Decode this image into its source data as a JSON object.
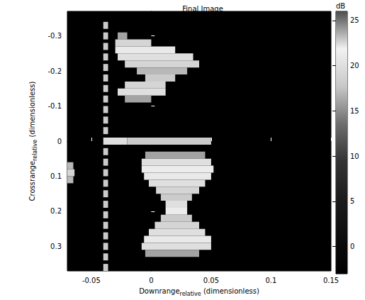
{
  "chart_data": {
    "type": "heatmap",
    "title": "Final Image",
    "x_label": {
      "text": "Downrange",
      "subscript": "relative",
      "suffix": "(dimensionless)"
    },
    "y_label": {
      "text": "Crossrange",
      "subscript": "relative",
      "suffix": "(dimensionless)"
    },
    "xlim": [
      -0.07,
      0.15
    ],
    "xticks": [
      -0.05,
      0,
      0.05,
      0.1,
      0.15
    ],
    "ylim": [
      0.37,
      -0.37
    ],
    "yticks": [
      -0.3,
      -0.2,
      -0.1,
      0,
      0.1,
      0.2,
      0.3
    ],
    "grid": false,
    "cells": {
      "run_height": 0.02,
      "runs": [
        [
          -0.33,
          -0.04,
          -0.036,
          18
        ],
        [
          -0.3,
          -0.04,
          -0.036,
          18
        ],
        [
          -0.27,
          -0.04,
          -0.036,
          18
        ],
        [
          -0.24,
          -0.04,
          -0.036,
          18
        ],
        [
          -0.21,
          -0.04,
          -0.036,
          18
        ],
        [
          -0.18,
          -0.04,
          -0.036,
          18
        ],
        [
          -0.15,
          -0.04,
          -0.036,
          18
        ],
        [
          -0.12,
          -0.04,
          -0.036,
          18
        ],
        [
          -0.09,
          -0.04,
          -0.036,
          18
        ],
        [
          -0.06,
          -0.04,
          -0.036,
          18
        ],
        [
          -0.03,
          -0.04,
          -0.036,
          18
        ],
        [
          0.03,
          -0.04,
          -0.036,
          18
        ],
        [
          0.06,
          -0.04,
          -0.036,
          18
        ],
        [
          0.09,
          -0.04,
          -0.036,
          18
        ],
        [
          0.12,
          -0.04,
          -0.036,
          18
        ],
        [
          0.15,
          -0.04,
          -0.036,
          18
        ],
        [
          0.18,
          -0.04,
          -0.036,
          18
        ],
        [
          0.21,
          -0.04,
          -0.036,
          18
        ],
        [
          0.24,
          -0.04,
          -0.036,
          18
        ],
        [
          0.27,
          -0.04,
          -0.036,
          18
        ],
        [
          0.3,
          -0.04,
          -0.036,
          18
        ],
        [
          0.33,
          -0.04,
          -0.036,
          18
        ],
        [
          0.36,
          -0.04,
          -0.036,
          18
        ],
        [
          0,
          -0.04,
          -0.02,
          20
        ],
        [
          0,
          -0.02,
          0.05,
          18
        ],
        [
          -0.3,
          -0.028,
          -0.02,
          16
        ],
        [
          -0.28,
          -0.03,
          0.0,
          19
        ],
        [
          -0.26,
          -0.03,
          0.02,
          21
        ],
        [
          -0.24,
          -0.028,
          0.035,
          20
        ],
        [
          -0.22,
          -0.022,
          0.04,
          19
        ],
        [
          -0.2,
          -0.012,
          0.03,
          17
        ],
        [
          -0.18,
          -0.005,
          0.02,
          18
        ],
        [
          -0.16,
          -0.022,
          0.012,
          19
        ],
        [
          -0.14,
          -0.028,
          0.012,
          20
        ],
        [
          -0.12,
          -0.022,
          0.0,
          16
        ],
        [
          0.04,
          -0.005,
          0.045,
          16
        ],
        [
          0.06,
          -0.008,
          0.05,
          20
        ],
        [
          0.08,
          -0.008,
          0.052,
          22
        ],
        [
          0.1,
          -0.006,
          0.05,
          21
        ],
        [
          0.12,
          -0.002,
          0.045,
          20
        ],
        [
          0.14,
          0.004,
          0.04,
          19
        ],
        [
          0.16,
          0.008,
          0.034,
          18
        ],
        [
          0.18,
          0.012,
          0.03,
          20
        ],
        [
          0.2,
          0.012,
          0.03,
          22
        ],
        [
          0.22,
          0.008,
          0.034,
          18
        ],
        [
          0.24,
          0.003,
          0.04,
          19
        ],
        [
          0.26,
          -0.002,
          0.045,
          20
        ],
        [
          0.28,
          -0.006,
          0.05,
          21
        ],
        [
          0.3,
          -0.008,
          0.05,
          20
        ],
        [
          0.32,
          -0.005,
          0.04,
          16
        ],
        [
          0.07,
          -0.07,
          -0.065,
          17
        ],
        [
          0.09,
          -0.07,
          -0.064,
          19
        ],
        [
          0.11,
          -0.07,
          -0.065,
          17
        ]
      ]
    },
    "colorbar": {
      "label": "dB",
      "range": [
        -3,
        26
      ],
      "ticks": [
        0,
        5,
        10,
        15,
        20,
        25
      ]
    }
  }
}
